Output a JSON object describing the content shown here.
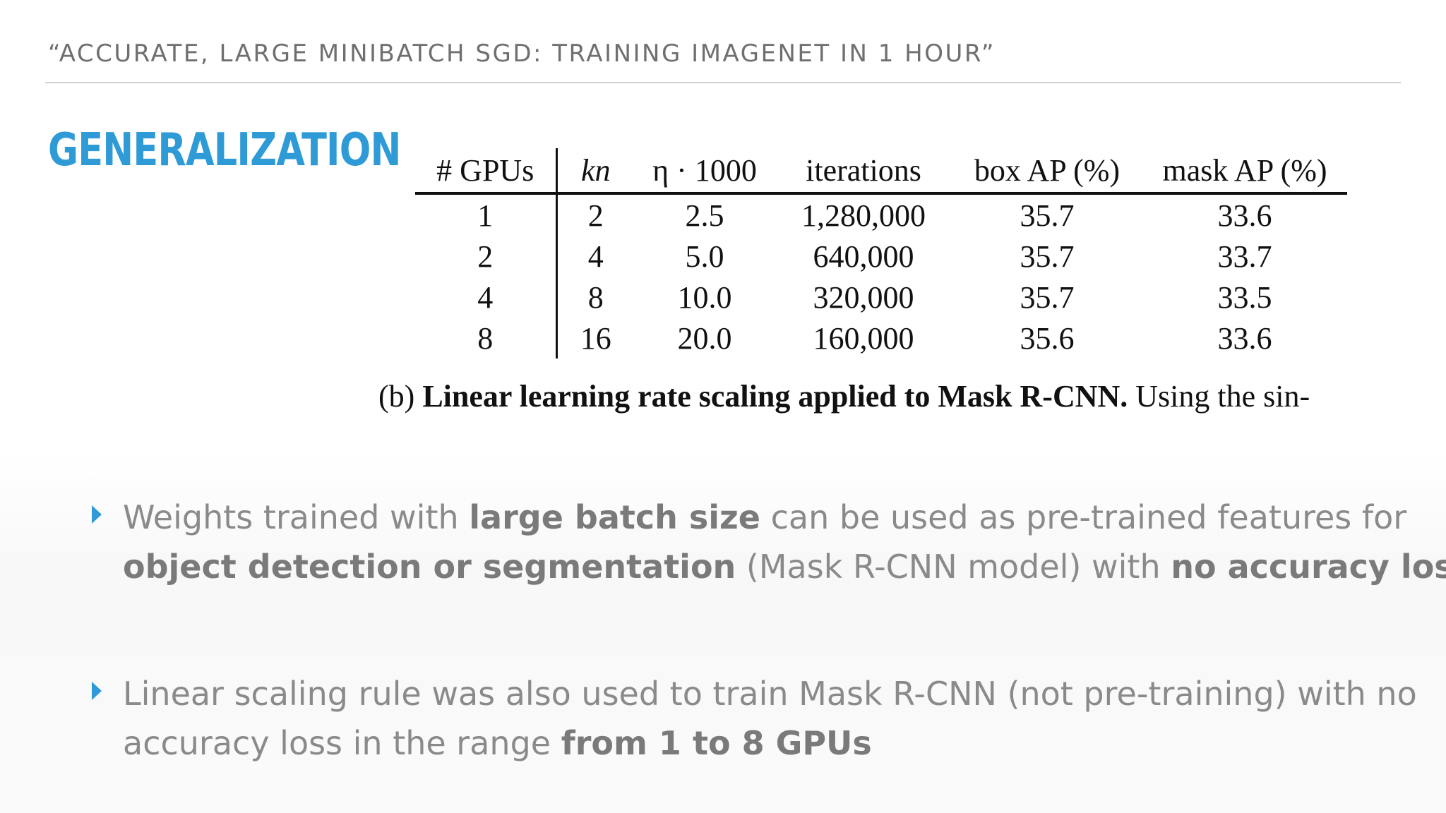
{
  "header": {
    "title": "“ACCURATE, LARGE MINIBATCH SGD: TRAINING IMAGENET IN 1 HOUR”"
  },
  "section": {
    "title": "GENERALIZATION"
  },
  "table": {
    "headers": [
      "# GPUs",
      "kn",
      "η · 1000",
      "iterations",
      "box AP (%)",
      "mask AP (%)"
    ],
    "rows": [
      [
        "1",
        "2",
        "2.5",
        "1,280,000",
        "35.7",
        "33.6"
      ],
      [
        "2",
        "4",
        "5.0",
        "640,000",
        "35.7",
        "33.7"
      ],
      [
        "4",
        "8",
        "10.0",
        "320,000",
        "35.7",
        "33.5"
      ],
      [
        "8",
        "16",
        "20.0",
        "160,000",
        "35.6",
        "33.6"
      ]
    ]
  },
  "caption": {
    "prefix": "(b) ",
    "bold": "Linear learning rate scaling applied to Mask R-CNN.",
    "rest": " Using the sin-"
  },
  "bullets": [
    {
      "parts": [
        {
          "text": "Weights trained with ",
          "bold": false
        },
        {
          "text": "large batch size",
          "bold": true
        },
        {
          "text": " can be used as pre-trained features for ",
          "bold": false
        },
        {
          "text": "object detection or segmentation",
          "bold": true
        },
        {
          "text": " (Mask R-CNN model) with ",
          "bold": false
        },
        {
          "text": "no accuracy loss",
          "bold": true
        }
      ]
    },
    {
      "parts": [
        {
          "text": "Linear scaling rule was also used to train Mask R-CNN (not pre-training) with no accuracy loss in the range ",
          "bold": false
        },
        {
          "text": "from 1 to 8 GPUs",
          "bold": true
        }
      ]
    }
  ],
  "colors": {
    "accent": "#2f9bd6",
    "header_text": "#6f6f6f",
    "body_text": "#8a8a8a"
  }
}
